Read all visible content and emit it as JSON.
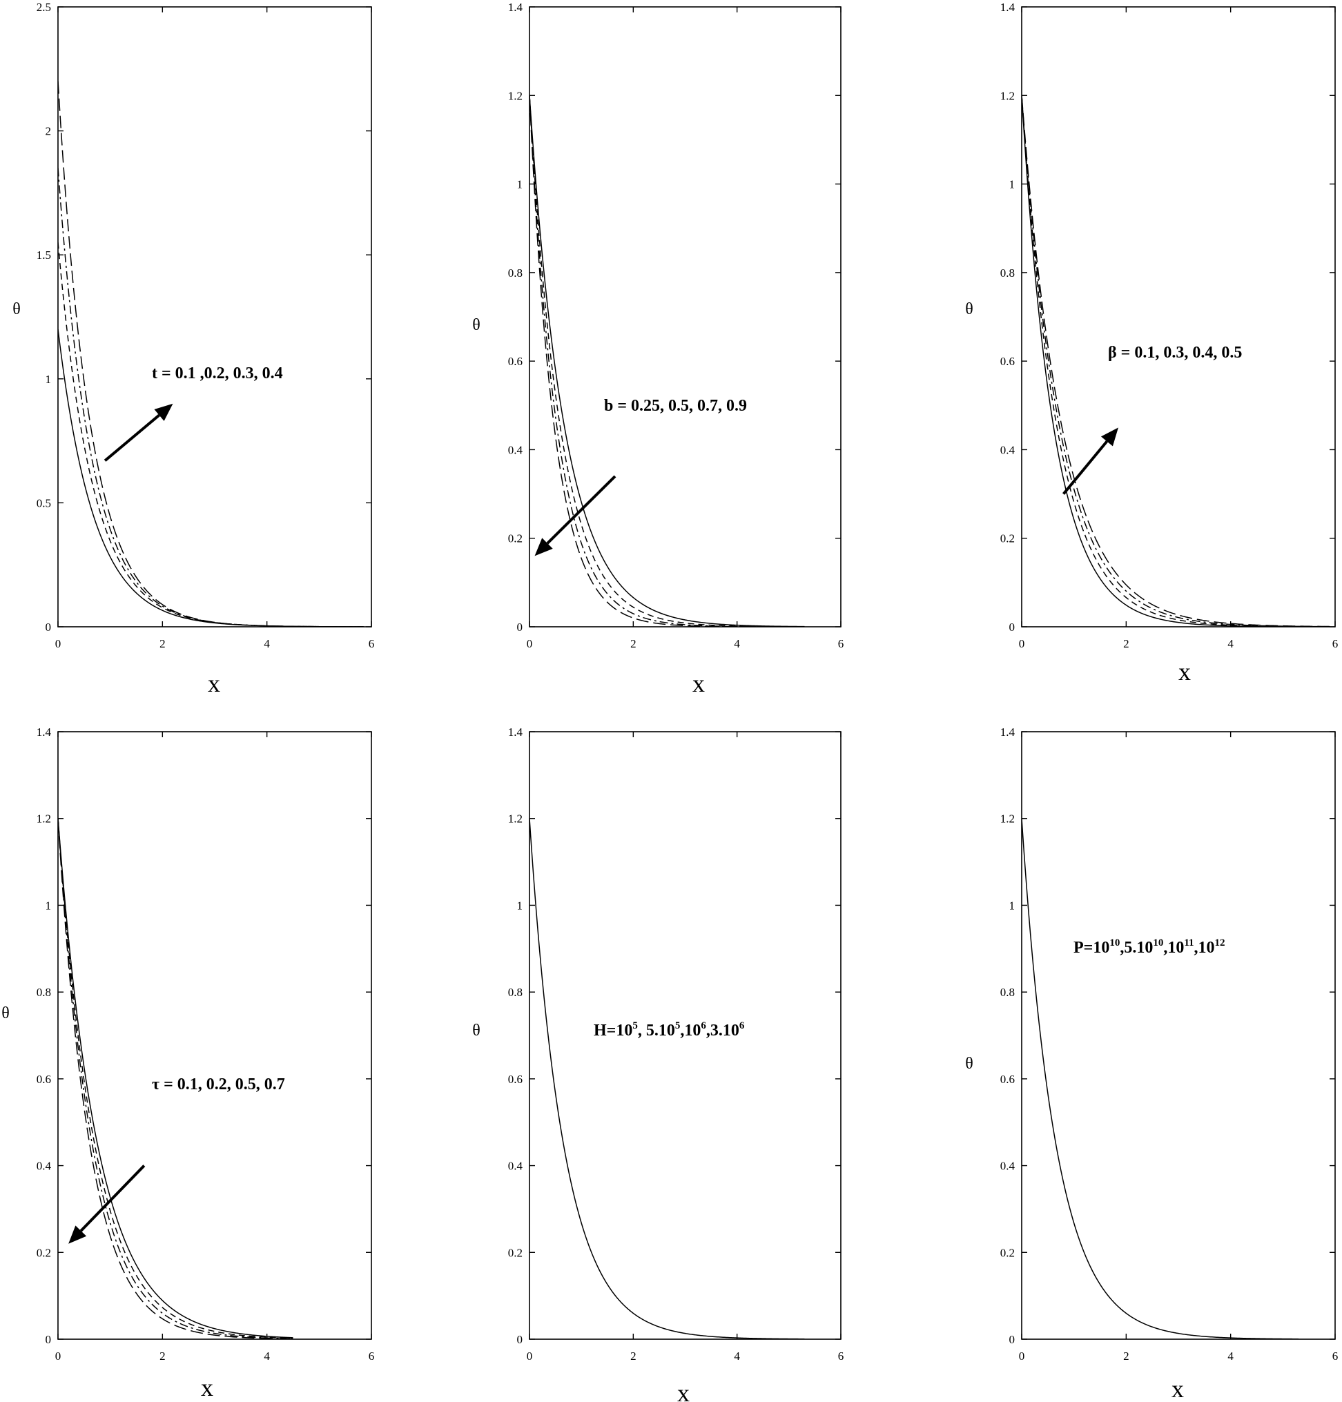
{
  "chart_data": [
    {
      "type": "line",
      "xlabel": "x",
      "ylabel": "θ",
      "xlim": [
        0,
        6
      ],
      "ylim": [
        0,
        2.5
      ],
      "xticks": [
        "0",
        "2",
        "4",
        "6"
      ],
      "yticks": [
        "0",
        "0.5",
        "1",
        "1.5",
        "2",
        "2.5"
      ],
      "annotation": "t  = 0.1 ,0.2, 0.3, 0.4",
      "arrow": {
        "from": [
          0.9,
          0.67
        ],
        "to": [
          2.2,
          0.9
        ]
      },
      "series": [
        {
          "y0": 1.2,
          "decay": 1.45,
          "xmax": 5.85,
          "dash": "solid"
        },
        {
          "y0": 1.55,
          "decay": 1.5,
          "xmax": 5.85,
          "dash": "dash"
        },
        {
          "y0": 1.85,
          "decay": 1.55,
          "xmax": 5.85,
          "dash": "dashdot"
        },
        {
          "y0": 2.2,
          "decay": 1.6,
          "xmax": 5.85,
          "dash": "longdash"
        }
      ]
    },
    {
      "type": "line",
      "xlabel": "x",
      "ylabel": "θ",
      "xlim": [
        0,
        6
      ],
      "ylim": [
        0,
        1.4
      ],
      "xticks": [
        "0",
        "2",
        "4",
        "6"
      ],
      "yticks": [
        "0",
        "0.2",
        "0.4",
        "0.6",
        "0.8",
        "1",
        "1.2",
        "1.4"
      ],
      "annotation": "b = 0.25, 0.5, 0.7, 0.9",
      "arrow": {
        "from": [
          1.65,
          0.34
        ],
        "to": [
          0.1,
          0.16
        ]
      },
      "series": [
        {
          "y0": 1.2,
          "decay": 1.45,
          "xmax": 5.3,
          "dash": "solid"
        },
        {
          "y0": 1.2,
          "decay": 1.65,
          "xmax": 5.3,
          "dash": "dash"
        },
        {
          "y0": 1.2,
          "decay": 1.85,
          "xmax": 5.3,
          "dash": "dashdot"
        },
        {
          "y0": 1.2,
          "decay": 2.05,
          "xmax": 5.3,
          "dash": "longdash"
        }
      ]
    },
    {
      "type": "line",
      "xlabel": "x",
      "ylabel": "θ",
      "xlim": [
        0,
        6
      ],
      "ylim": [
        0,
        1.4
      ],
      "xticks": [
        "0",
        "2",
        "4",
        "6"
      ],
      "yticks": [
        "0",
        "0.2",
        "0.4",
        "0.6",
        "0.8",
        "1",
        "1.2",
        "1.4"
      ],
      "annotation": "β = 0.1, 0.3, 0.4, 0.5",
      "arrow": {
        "from": [
          0.8,
          0.3
        ],
        "to": [
          1.85,
          0.45
        ]
      },
      "series": [
        {
          "y0": 1.2,
          "decay": 1.6,
          "xmax": 5.9,
          "dash": "solid"
        },
        {
          "y0": 1.2,
          "decay": 1.45,
          "xmax": 5.9,
          "dash": "dash"
        },
        {
          "y0": 1.2,
          "decay": 1.35,
          "xmax": 5.9,
          "dash": "dashdot"
        },
        {
          "y0": 1.2,
          "decay": 1.27,
          "xmax": 5.9,
          "dash": "longdash"
        }
      ]
    },
    {
      "type": "line",
      "xlabel": "x",
      "ylabel": "θ",
      "xlim": [
        0,
        6
      ],
      "ylim": [
        0,
        1.4
      ],
      "xticks": [
        "0",
        "2",
        "4",
        "6"
      ],
      "yticks": [
        "0",
        "0.2",
        "0.4",
        "0.6",
        "0.8",
        "1",
        "1.2",
        "1.4"
      ],
      "annotation": "τ = 0.1, 0.2, 0.5, 0.7",
      "arrow": {
        "from": [
          1.65,
          0.4
        ],
        "to": [
          0.2,
          0.22
        ]
      },
      "series": [
        {
          "y0": 1.2,
          "decay": 1.3,
          "xmax": 4.5,
          "dash": "solid"
        },
        {
          "y0": 1.2,
          "decay": 1.4,
          "xmax": 4.5,
          "dash": "dash"
        },
        {
          "y0": 1.2,
          "decay": 1.5,
          "xmax": 4.5,
          "dash": "dashdot"
        },
        {
          "y0": 1.2,
          "decay": 1.62,
          "xmax": 4.5,
          "dash": "longdash"
        }
      ]
    },
    {
      "type": "line",
      "xlabel": "x",
      "ylabel": "θ",
      "xlim": [
        0,
        6
      ],
      "ylim": [
        0,
        1.4
      ],
      "xticks": [
        "0",
        "2",
        "4",
        "6"
      ],
      "yticks": [
        "0",
        "0.2",
        "0.4",
        "0.6",
        "0.8",
        "1",
        "1.2",
        "1.4"
      ],
      "annotation_parts": [
        "H=10",
        "5",
        ", 5.10",
        "5",
        ",10",
        "6",
        ",3.10",
        "6"
      ],
      "series": [
        {
          "y0": 1.2,
          "decay": 1.5,
          "xmax": 5.3,
          "dash": "solid"
        }
      ]
    },
    {
      "type": "line",
      "xlabel": "x",
      "ylabel": "θ",
      "xlim": [
        0,
        6
      ],
      "ylim": [
        0,
        1.4
      ],
      "xticks": [
        "0",
        "2",
        "4",
        "6"
      ],
      "yticks": [
        "0",
        "0.2",
        "0.4",
        "0.6",
        "0.8",
        "1",
        "1.2",
        "1.4"
      ],
      "annotation_parts": [
        "P=10",
        "10",
        ",5.10",
        "10",
        ",10",
        "11",
        ",10",
        "12"
      ],
      "series": [
        {
          "y0": 1.2,
          "decay": 1.5,
          "xmax": 5.3,
          "dash": "solid"
        }
      ]
    }
  ]
}
